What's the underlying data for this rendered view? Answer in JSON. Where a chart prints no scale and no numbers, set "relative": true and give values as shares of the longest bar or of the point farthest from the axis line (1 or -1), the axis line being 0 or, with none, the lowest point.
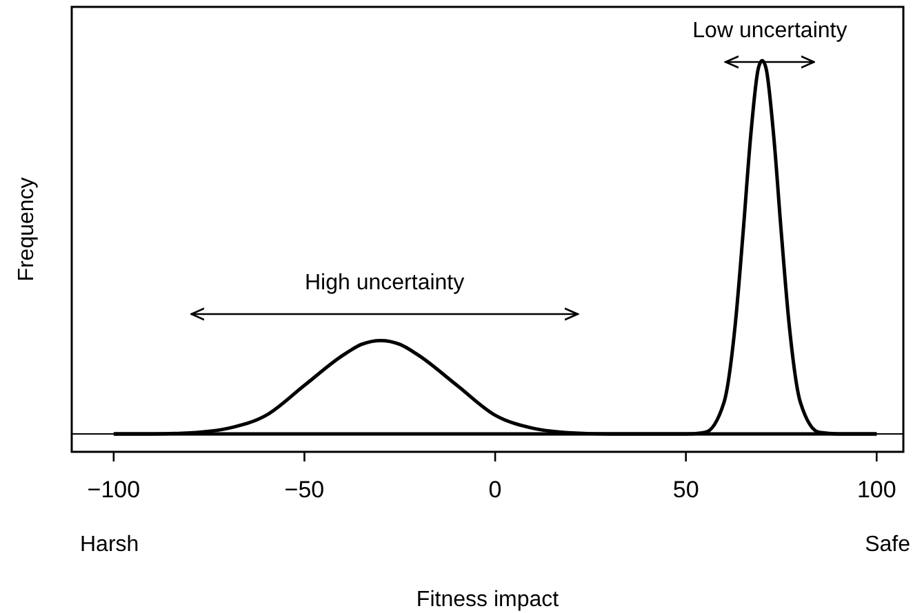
{
  "chart_data": {
    "type": "line",
    "relative": true,
    "xlabel": "Fitness impact",
    "ylabel": "Frequency",
    "xlim": [
      -111,
      107
    ],
    "xticks": [
      {
        "value": -100,
        "label": "−100"
      },
      {
        "value": -50,
        "label": "−50"
      },
      0,
      50,
      100
    ],
    "series": [
      {
        "color": "#000000",
        "x": [
          -100,
          -90,
          -80,
          -70,
          -60,
          -50,
          -40,
          -35,
          -30,
          -25,
          -20,
          -10,
          0,
          10,
          20,
          30,
          100
        ],
        "values": [
          0,
          0,
          0.003,
          0.015,
          0.05,
          0.13,
          0.21,
          0.24,
          0.25,
          0.24,
          0.21,
          0.13,
          0.05,
          0.015,
          0.003,
          0,
          0
        ]
      },
      {
        "color": "#000000",
        "x": [
          -100,
          50,
          55,
          60,
          63,
          65,
          67,
          69,
          70,
          71,
          73,
          75,
          77,
          80,
          85,
          90,
          100
        ],
        "values": [
          0,
          0,
          0.004,
          0.085,
          0.3,
          0.54,
          0.8,
          0.98,
          1,
          0.98,
          0.8,
          0.54,
          0.3,
          0.085,
          0.004,
          0,
          0
        ]
      }
    ],
    "annotations": [
      "High uncertainty",
      "Low uncertainty",
      "Harsh",
      "Safe"
    ],
    "line_style": "solid",
    "grid": false
  }
}
